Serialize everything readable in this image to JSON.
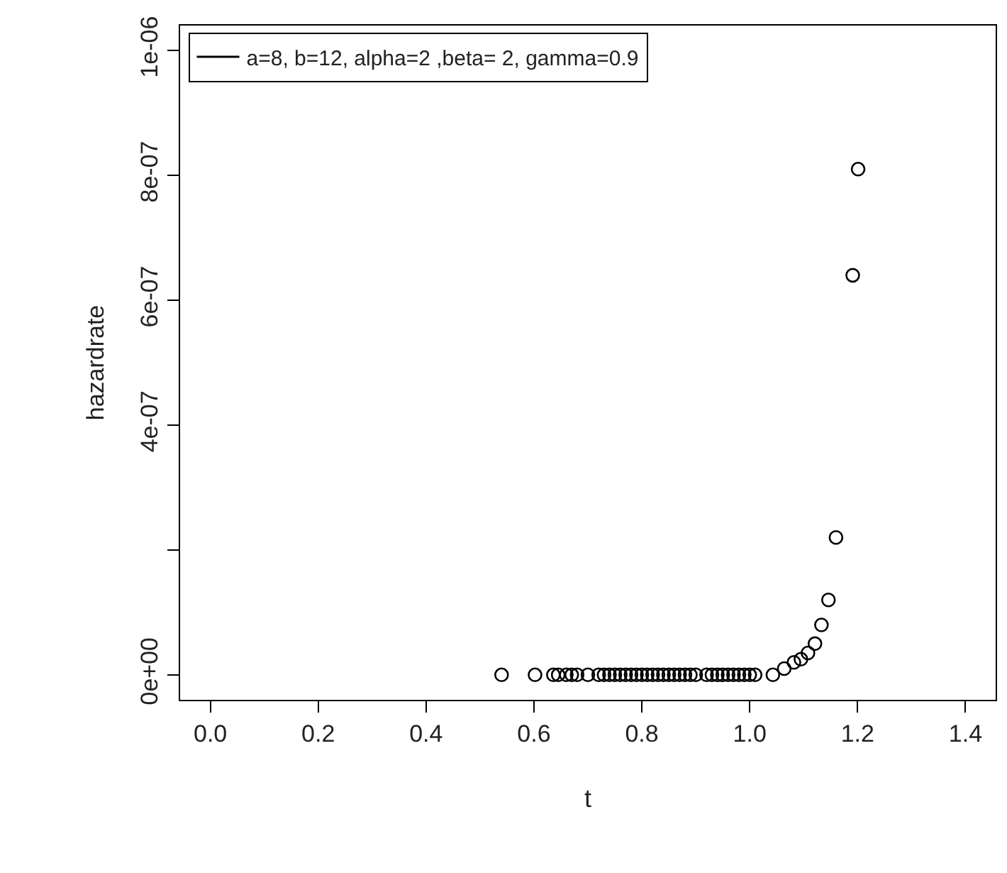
{
  "chart_data": {
    "type": "scatter",
    "xlabel": "t",
    "ylabel": "hazardrate",
    "xlim": [
      -0.056,
      1.456
    ],
    "xticks": [
      {
        "value": 0,
        "label": "0.0"
      },
      0.2,
      0.4,
      0.6,
      0.8,
      {
        "value": 1,
        "label": "1.0"
      },
      1.2,
      1.4
    ],
    "ylim": [
      -4e-08,
      1.04e-06
    ],
    "yticks": [
      {
        "value": 0,
        "label": "0e+00"
      },
      {
        "value": 2e-07,
        "label": null
      },
      {
        "value": 4e-07,
        "label": "4e-07"
      },
      {
        "value": 6e-07,
        "label": "6e-07"
      },
      {
        "value": 8e-07,
        "label": "8e-07"
      },
      {
        "value": 1e-06,
        "label": "1e-06"
      }
    ],
    "marker": "circle",
    "legend": "top left",
    "x": [
      0.54,
      0.602,
      0.636,
      0.645,
      0.66,
      0.67,
      0.68,
      0.7,
      0.72,
      0.73,
      0.74,
      0.75,
      0.76,
      0.77,
      0.78,
      0.79,
      0.8,
      0.81,
      0.82,
      0.83,
      0.84,
      0.85,
      0.86,
      0.87,
      0.88,
      0.89,
      0.9,
      0.92,
      0.93,
      0.94,
      0.95,
      0.96,
      0.97,
      0.98,
      0.99,
      1.0,
      1.01,
      1.043,
      1.064,
      1.082,
      1.095,
      1.108,
      1.121,
      1.133,
      1.146,
      1.16,
      1.191,
      1.201
    ],
    "series": [
      {
        "name": "a=8, b=12, alpha=2 ,beta= 2, gamma=0.9",
        "color": "#000000",
        "values": [
          0,
          0,
          0,
          0,
          0,
          0,
          0,
          0,
          0,
          0,
          0,
          0,
          0,
          0,
          0,
          0,
          0,
          0,
          0,
          0,
          0,
          0,
          0,
          0,
          0,
          0,
          0,
          0,
          0,
          0,
          0,
          0,
          0,
          0,
          0,
          0,
          0,
          0,
          1e-08,
          2e-08,
          2.5e-08,
          3.5e-08,
          5e-08,
          8e-08,
          1.2e-07,
          2.2e-07,
          6.4e-07,
          8.1e-07
        ]
      }
    ]
  }
}
